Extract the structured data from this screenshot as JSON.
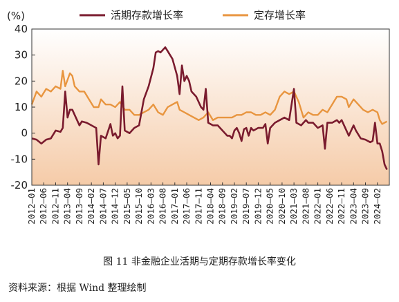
{
  "caption": "图 11  非金融企业活期与定期存款增长率变化",
  "source": "资料来源：根据 Wind 整理绘制",
  "chart_data": {
    "type": "line",
    "title": "",
    "xlabel": "",
    "ylabel": "",
    "unit": "(%)",
    "ylim": [
      -20,
      40
    ],
    "yticks": [
      40,
      30,
      20,
      10,
      0,
      -10,
      -20
    ],
    "xlim": [
      "2012-01",
      "2024-07"
    ],
    "grid": false,
    "legend": "top",
    "xtick_labels": [
      "2012—01",
      "2012—06",
      "2012—11",
      "2013—04",
      "2013—09",
      "2014—02",
      "2014—07",
      "2014—12",
      "2015—05",
      "2015—10",
      "2016—03",
      "2016—08",
      "2017—01",
      "2017—06",
      "2017—11",
      "2018—04",
      "2018—09",
      "2019—02",
      "2019—07",
      "2019—12",
      "2020—05",
      "2020—10",
      "2021—03",
      "2021—08",
      "2022—01",
      "2022—06",
      "2022—11",
      "2023—04",
      "2023—09",
      "2024—02"
    ],
    "colors": {
      "demand": "#7a1b2e",
      "time": "#e8953f",
      "fill_top": "#ffffff",
      "fill_bottom": "#f5cba8"
    },
    "series": [
      {
        "name": "活期存款增长率",
        "key": "demand",
        "points": [
          [
            "2012-01",
            -2
          ],
          [
            "2012-03",
            -2.5
          ],
          [
            "2012-05",
            -4
          ],
          [
            "2012-07",
            -2.5
          ],
          [
            "2012-09",
            -2
          ],
          [
            "2012-11",
            1
          ],
          [
            "2013-01",
            0.5
          ],
          [
            "2013-02",
            2
          ],
          [
            "2013-03",
            16
          ],
          [
            "2013-04",
            6
          ],
          [
            "2013-05",
            9
          ],
          [
            "2013-06",
            9
          ],
          [
            "2013-07",
            7
          ],
          [
            "2013-09",
            3
          ],
          [
            "2013-10",
            4.5
          ],
          [
            "2013-12",
            4
          ],
          [
            "2014-02",
            3
          ],
          [
            "2014-04",
            2
          ],
          [
            "2014-05",
            -12
          ],
          [
            "2014-06",
            -1
          ],
          [
            "2014-08",
            -2
          ],
          [
            "2014-10",
            3.5
          ],
          [
            "2014-11",
            -1
          ],
          [
            "2014-12",
            0
          ],
          [
            "2015-01",
            -2
          ],
          [
            "2015-02",
            -1
          ],
          [
            "2015-03",
            18
          ],
          [
            "2015-04",
            1
          ],
          [
            "2015-06",
            0
          ],
          [
            "2015-08",
            2
          ],
          [
            "2015-10",
            3
          ],
          [
            "2015-12",
            13
          ],
          [
            "2016-02",
            18
          ],
          [
            "2016-04",
            25
          ],
          [
            "2016-05",
            31
          ],
          [
            "2016-06",
            31.5
          ],
          [
            "2016-07",
            31
          ],
          [
            "2016-08",
            32
          ],
          [
            "2016-09",
            33
          ],
          [
            "2016-10",
            31.5
          ],
          [
            "2016-12",
            28.5
          ],
          [
            "2017-02",
            22
          ],
          [
            "2017-03",
            15
          ],
          [
            "2017-04",
            26
          ],
          [
            "2017-05",
            20
          ],
          [
            "2017-06",
            22
          ],
          [
            "2017-07",
            20
          ],
          [
            "2017-08",
            16
          ],
          [
            "2017-10",
            14
          ],
          [
            "2017-12",
            10
          ],
          [
            "2018-01",
            9
          ],
          [
            "2018-02",
            17
          ],
          [
            "2018-03",
            4
          ],
          [
            "2018-05",
            3
          ],
          [
            "2018-07",
            3
          ],
          [
            "2018-09",
            1
          ],
          [
            "2018-11",
            -1
          ],
          [
            "2018-12",
            -1
          ],
          [
            "2019-01",
            -2
          ],
          [
            "2019-02",
            1
          ],
          [
            "2019-03",
            2
          ],
          [
            "2019-04",
            0
          ],
          [
            "2019-05",
            -3
          ],
          [
            "2019-06",
            1.5
          ],
          [
            "2019-07",
            2
          ],
          [
            "2019-08",
            -1
          ],
          [
            "2019-09",
            2
          ],
          [
            "2019-10",
            1
          ],
          [
            "2019-12",
            2
          ],
          [
            "2020-02",
            2
          ],
          [
            "2020-03",
            3.5
          ],
          [
            "2020-04",
            -4
          ],
          [
            "2020-05",
            2
          ],
          [
            "2020-07",
            4
          ],
          [
            "2020-09",
            5
          ],
          [
            "2020-11",
            6
          ],
          [
            "2021-01",
            5
          ],
          [
            "2021-03",
            17
          ],
          [
            "2021-04",
            4
          ],
          [
            "2021-06",
            3
          ],
          [
            "2021-08",
            5
          ],
          [
            "2021-09",
            4
          ],
          [
            "2021-11",
            4
          ],
          [
            "2022-01",
            2
          ],
          [
            "2022-03",
            3
          ],
          [
            "2022-04",
            -6
          ],
          [
            "2022-05",
            4
          ],
          [
            "2022-07",
            4
          ],
          [
            "2022-09",
            5
          ],
          [
            "2022-10",
            4
          ],
          [
            "2022-11",
            5
          ],
          [
            "2023-01",
            1
          ],
          [
            "2023-02",
            -1
          ],
          [
            "2023-04",
            3
          ],
          [
            "2023-05",
            1
          ],
          [
            "2023-07",
            -2
          ],
          [
            "2023-09",
            -2.5
          ],
          [
            "2023-11",
            -3.5
          ],
          [
            "2023-12",
            -3
          ],
          [
            "2024-01",
            4
          ],
          [
            "2024-02",
            -4
          ],
          [
            "2024-03",
            -4
          ],
          [
            "2024-04",
            -7
          ],
          [
            "2024-05",
            -12
          ],
          [
            "2024-06",
            -14
          ]
        ]
      },
      {
        "name": "定存增长率",
        "key": "time",
        "points": [
          [
            "2012-01",
            11
          ],
          [
            "2012-03",
            16
          ],
          [
            "2012-05",
            14
          ],
          [
            "2012-07",
            17
          ],
          [
            "2012-09",
            16
          ],
          [
            "2012-11",
            18
          ],
          [
            "2013-01",
            17
          ],
          [
            "2013-02",
            24
          ],
          [
            "2013-03",
            18
          ],
          [
            "2013-05",
            23
          ],
          [
            "2013-06",
            22
          ],
          [
            "2013-07",
            18
          ],
          [
            "2013-09",
            16
          ],
          [
            "2013-11",
            16
          ],
          [
            "2014-01",
            13
          ],
          [
            "2014-03",
            10
          ],
          [
            "2014-05",
            10
          ],
          [
            "2014-06",
            13
          ],
          [
            "2014-08",
            11
          ],
          [
            "2014-10",
            11
          ],
          [
            "2014-12",
            10
          ],
          [
            "2015-02",
            12
          ],
          [
            "2015-04",
            9
          ],
          [
            "2015-06",
            9
          ],
          [
            "2015-08",
            7
          ],
          [
            "2015-10",
            7
          ],
          [
            "2015-12",
            8
          ],
          [
            "2016-02",
            9
          ],
          [
            "2016-04",
            11
          ],
          [
            "2016-06",
            8
          ],
          [
            "2016-08",
            7
          ],
          [
            "2016-10",
            10
          ],
          [
            "2016-12",
            11
          ],
          [
            "2017-02",
            12
          ],
          [
            "2017-03",
            9
          ],
          [
            "2017-05",
            8
          ],
          [
            "2017-07",
            7
          ],
          [
            "2017-09",
            6
          ],
          [
            "2017-11",
            5
          ],
          [
            "2018-01",
            6
          ],
          [
            "2018-03",
            8
          ],
          [
            "2018-05",
            5
          ],
          [
            "2018-07",
            6
          ],
          [
            "2018-09",
            6
          ],
          [
            "2018-11",
            6
          ],
          [
            "2019-01",
            6
          ],
          [
            "2019-03",
            7
          ],
          [
            "2019-05",
            7
          ],
          [
            "2019-07",
            8
          ],
          [
            "2019-09",
            8
          ],
          [
            "2019-11",
            7
          ],
          [
            "2020-01",
            7
          ],
          [
            "2020-03",
            8
          ],
          [
            "2020-05",
            7
          ],
          [
            "2020-07",
            9
          ],
          [
            "2020-09",
            14
          ],
          [
            "2020-11",
            16
          ],
          [
            "2021-01",
            15
          ],
          [
            "2021-03",
            16
          ],
          [
            "2021-05",
            12
          ],
          [
            "2021-07",
            6
          ],
          [
            "2021-09",
            8
          ],
          [
            "2021-11",
            7
          ],
          [
            "2022-01",
            7
          ],
          [
            "2022-03",
            9
          ],
          [
            "2022-05",
            8
          ],
          [
            "2022-07",
            11
          ],
          [
            "2022-09",
            14
          ],
          [
            "2022-11",
            14
          ],
          [
            "2023-01",
            13
          ],
          [
            "2023-02",
            10
          ],
          [
            "2023-04",
            13
          ],
          [
            "2023-06",
            11
          ],
          [
            "2023-08",
            9
          ],
          [
            "2023-10",
            8
          ],
          [
            "2023-12",
            9
          ],
          [
            "2024-02",
            8
          ],
          [
            "2024-03",
            5
          ],
          [
            "2024-04",
            3.5
          ],
          [
            "2024-05",
            4
          ],
          [
            "2024-06",
            4.5
          ]
        ]
      }
    ]
  }
}
